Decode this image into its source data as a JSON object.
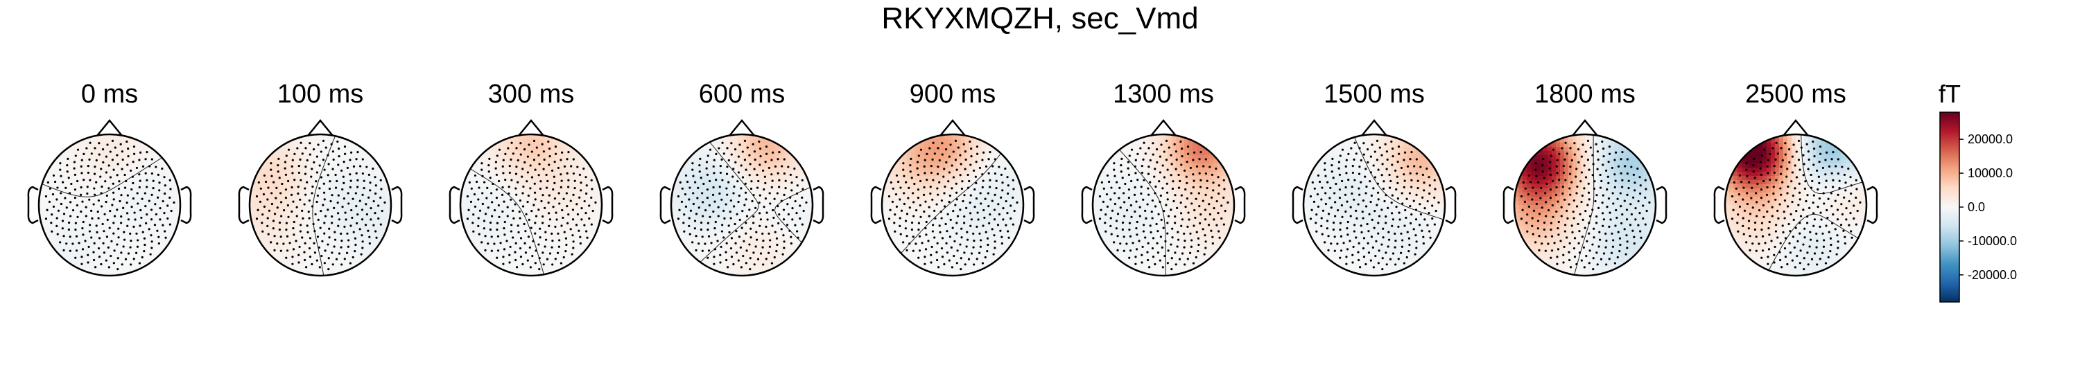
{
  "chart_data": {
    "type": "heatmap",
    "title": "RKYXMQZH, sec_Vmd",
    "unit": "fT",
    "colorbar": {
      "label": "fT",
      "range": [
        -28000,
        28000
      ],
      "ticks": [
        20000,
        10000,
        0,
        -10000,
        -20000
      ],
      "tick_labels": [
        "20000.0",
        "10000.0",
        "0.0",
        "-10000.0",
        "-20000.0"
      ],
      "colormap": "RdBu_r"
    },
    "maps": [
      {
        "label": "0 ms",
        "time_ms": 0,
        "peaks": [
          {
            "x": 0.05,
            "y": 0.75,
            "v": 2500
          },
          {
            "x": 0.4,
            "y": 0.2,
            "v": -1500
          },
          {
            "x": -0.55,
            "y": -0.6,
            "v": -1000
          }
        ]
      },
      {
        "label": "100 ms",
        "time_ms": 100,
        "peaks": [
          {
            "x": -0.7,
            "y": 0.45,
            "v": 5000
          },
          {
            "x": -0.75,
            "y": -0.3,
            "v": 2500
          },
          {
            "x": 0.2,
            "y": 0.1,
            "v": -1500
          },
          {
            "x": 0.8,
            "y": -0.2,
            "v": -2000
          }
        ]
      },
      {
        "label": "300 ms",
        "time_ms": 300,
        "peaks": [
          {
            "x": 0.0,
            "y": 0.9,
            "v": 7000
          },
          {
            "x": 0.45,
            "y": 0.2,
            "v": 2000
          },
          {
            "x": -0.6,
            "y": -0.1,
            "v": -1500
          }
        ]
      },
      {
        "label": "600 ms",
        "time_ms": 600,
        "peaks": [
          {
            "x": 0.35,
            "y": 0.85,
            "v": 9000
          },
          {
            "x": -0.45,
            "y": 0.2,
            "v": -5000
          },
          {
            "x": 0.3,
            "y": -0.6,
            "v": 2500
          },
          {
            "x": 0.75,
            "y": -0.15,
            "v": -1500
          }
        ]
      },
      {
        "label": "900 ms",
        "time_ms": 900,
        "peaks": [
          {
            "x": -0.1,
            "y": 0.9,
            "v": 9000
          },
          {
            "x": -0.5,
            "y": 0.6,
            "v": 5500
          },
          {
            "x": 0.3,
            "y": -0.1,
            "v": -2000
          },
          {
            "x": 0.7,
            "y": 0.35,
            "v": -1500
          }
        ]
      },
      {
        "label": "1300 ms",
        "time_ms": 1300,
        "peaks": [
          {
            "x": 0.55,
            "y": 0.85,
            "v": 15000
          },
          {
            "x": 0.7,
            "y": -0.1,
            "v": 3500
          },
          {
            "x": -0.5,
            "y": -0.1,
            "v": -2000
          }
        ]
      },
      {
        "label": "1500 ms",
        "time_ms": 1500,
        "peaks": [
          {
            "x": 0.65,
            "y": 0.65,
            "v": 9000
          },
          {
            "x": -0.4,
            "y": 0.2,
            "v": -2500
          },
          {
            "x": 0.35,
            "y": -0.3,
            "v": -2000
          }
        ]
      },
      {
        "label": "1800 ms",
        "time_ms": 1800,
        "peaks": [
          {
            "x": -0.65,
            "y": 0.6,
            "v": 26000
          },
          {
            "x": -0.7,
            "y": -0.2,
            "v": 8000
          },
          {
            "x": 0.65,
            "y": 0.6,
            "v": -9000
          },
          {
            "x": 0.6,
            "y": -0.55,
            "v": -4500
          }
        ]
      },
      {
        "label": "2500 ms",
        "time_ms": 2500,
        "peaks": [
          {
            "x": -0.6,
            "y": 0.75,
            "v": 30000
          },
          {
            "x": -0.55,
            "y": -0.15,
            "v": 5000
          },
          {
            "x": 0.5,
            "y": 0.75,
            "v": -12000
          },
          {
            "x": 0.65,
            "y": 0.25,
            "v": 4500
          },
          {
            "x": 0.2,
            "y": -0.55,
            "v": -3000
          }
        ]
      }
    ]
  }
}
